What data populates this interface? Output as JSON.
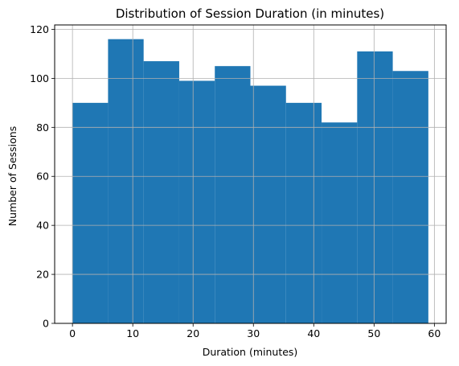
{
  "chart_data": {
    "type": "bar",
    "title": "Distribution of Session Duration (in minutes)",
    "xlabel": "Duration (minutes)",
    "ylabel": "Number of Sessions",
    "bin_edges": [
      0,
      5.9,
      11.8,
      17.7,
      23.6,
      29.5,
      35.4,
      41.3,
      47.2,
      53.1,
      59
    ],
    "values": [
      90,
      116,
      107,
      99,
      105,
      97,
      90,
      82,
      111,
      103
    ],
    "xlim": [
      -2.95,
      61.95
    ],
    "ylim": [
      0,
      121.8
    ],
    "xticks": [
      0,
      10,
      20,
      30,
      40,
      50,
      60
    ],
    "yticks": [
      0,
      20,
      40,
      60,
      80,
      100,
      120
    ],
    "grid": true,
    "bar_color": "#1f77b4",
    "grid_color": "#b0b0b0"
  }
}
